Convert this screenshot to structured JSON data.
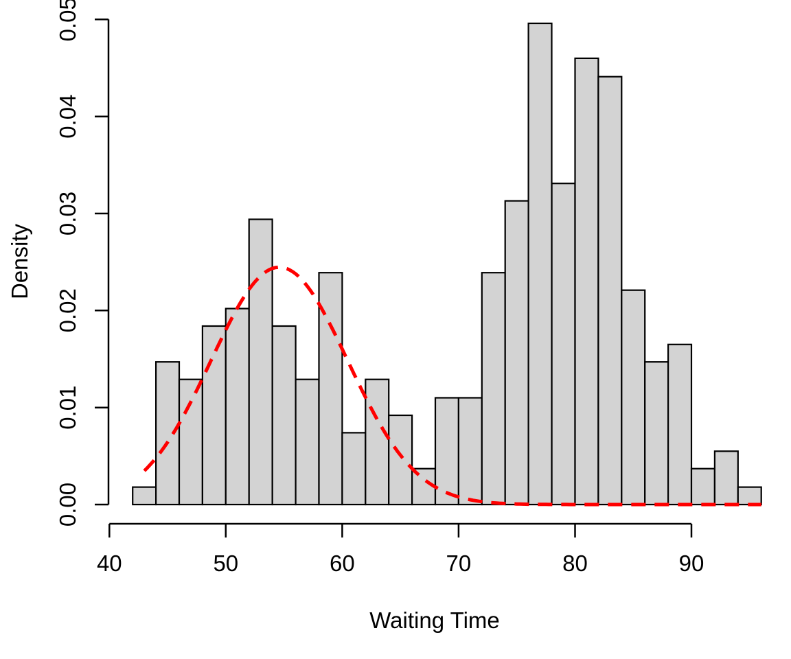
{
  "figure": {
    "background": "#FFFFFF"
  },
  "chart_data": {
    "type": "bar",
    "subtype": "histogram-with-density-curve",
    "title": "",
    "xlabel": "Waiting Time",
    "ylabel": "Density",
    "x_tick_labels": [
      "40",
      "50",
      "60",
      "70",
      "80",
      "90"
    ],
    "x_tick_values": [
      40,
      50,
      60,
      70,
      80,
      90
    ],
    "y_tick_labels": [
      "0.00",
      "0.01",
      "0.02",
      "0.03",
      "0.04",
      "0.05"
    ],
    "y_tick_values": [
      0,
      0.01,
      0.02,
      0.03,
      0.04,
      0.05
    ],
    "xlim": [
      40,
      96.3
    ],
    "ylim": [
      0,
      0.05
    ],
    "grid": false,
    "legend_position": "none",
    "bins": {
      "start": 42,
      "width": 2,
      "densities": [
        0.0018,
        0.0147,
        0.0129,
        0.0184,
        0.0202,
        0.0294,
        0.0184,
        0.0129,
        0.0239,
        0.0074,
        0.0129,
        0.0092,
        0.0037,
        0.011,
        0.011,
        0.0239,
        0.0313,
        0.0496,
        0.0331,
        0.046,
        0.0441,
        0.0221,
        0.0147,
        0.0165,
        0.0037,
        0.0055,
        0.0018
      ]
    },
    "overlay_curve": {
      "shape": "gaussian",
      "weight": 0.36,
      "mean": 54.6,
      "sd": 5.87,
      "x_start": 43,
      "x_end": 96,
      "line_style": "dashed",
      "peak_x": 54.6,
      "peak_y": 0.0245
    },
    "colors": {
      "bar_fill": "#D3D3D3",
      "bar_stroke": "#000000",
      "axis": "#000000",
      "curve": "#FF0000"
    }
  }
}
